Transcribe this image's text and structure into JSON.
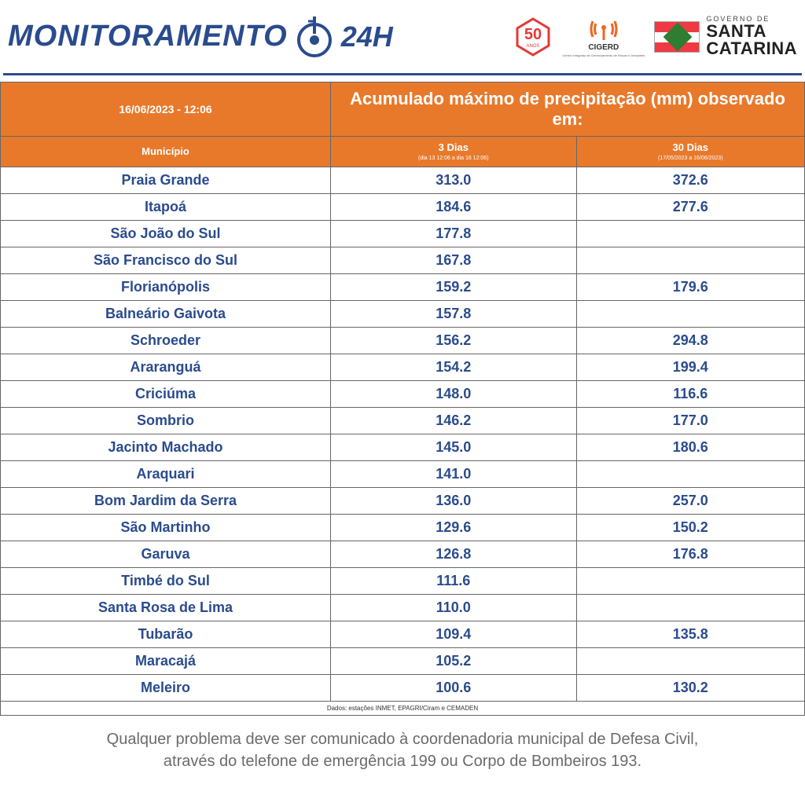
{
  "header": {
    "brand_text": "MONITORAMENTO",
    "brand_24h": "24H",
    "logo_50_top": "5",
    "logo_50_bottom": "ANOS",
    "cigerd_label": "CIGERD",
    "cigerd_sub": "Centro Integrado de Gerenciamento de Riscos e Desastres",
    "sc_gov": "GOVERNO DE",
    "sc_name1": "SANTA",
    "sc_name2": "CATARINA"
  },
  "table": {
    "timestamp": "16/06/2023 - 12:06",
    "title": "Acumulado máximo de precipitação (mm) observado em:",
    "col_municipio": "Município",
    "col_3dias": "3 Dias",
    "col_3dias_sub": "(dia 13 12:06 a dia 16 12:06)",
    "col_30dias": "30 Dias",
    "col_30dias_sub": "(17/05/2023 a 16/06/2023)",
    "columns_widths": [
      420,
      302,
      302
    ],
    "header_bg": "#e8792b",
    "header_fg": "#ffffff",
    "cell_fg": "#2a4b8d",
    "border_color": "#666666",
    "rows": [
      {
        "mun": "Praia Grande",
        "d3": "313.0",
        "d30": "372.6"
      },
      {
        "mun": "Itapoá",
        "d3": "184.6",
        "d30": "277.6"
      },
      {
        "mun": "São João do Sul",
        "d3": "177.8",
        "d30": ""
      },
      {
        "mun": "São Francisco do Sul",
        "d3": "167.8",
        "d30": ""
      },
      {
        "mun": "Florianópolis",
        "d3": "159.2",
        "d30": "179.6"
      },
      {
        "mun": "Balneário Gaivota",
        "d3": "157.8",
        "d30": ""
      },
      {
        "mun": "Schroeder",
        "d3": "156.2",
        "d30": "294.8"
      },
      {
        "mun": "Araranguá",
        "d3": "154.2",
        "d30": "199.4"
      },
      {
        "mun": "Criciúma",
        "d3": "148.0",
        "d30": "116.6"
      },
      {
        "mun": "Sombrio",
        "d3": "146.2",
        "d30": "177.0"
      },
      {
        "mun": "Jacinto Machado",
        "d3": "145.0",
        "d30": "180.6"
      },
      {
        "mun": "Araquari",
        "d3": "141.0",
        "d30": ""
      },
      {
        "mun": "Bom Jardim da Serra",
        "d3": "136.0",
        "d30": "257.0"
      },
      {
        "mun": "São Martinho",
        "d3": "129.6",
        "d30": "150.2"
      },
      {
        "mun": "Garuva",
        "d3": "126.8",
        "d30": "176.8"
      },
      {
        "mun": "Timbé do Sul",
        "d3": "111.6",
        "d30": ""
      },
      {
        "mun": "Santa Rosa de Lima",
        "d3": "110.0",
        "d30": ""
      },
      {
        "mun": "Tubarão",
        "d3": "109.4",
        "d30": "135.8"
      },
      {
        "mun": "Maracajá",
        "d3": "105.2",
        "d30": ""
      },
      {
        "mun": "Meleiro",
        "d3": "100.6",
        "d30": "130.2"
      }
    ],
    "source": "Dados: estações INMET, EPAGRI/Ciram e CEMADEN"
  },
  "footer": {
    "line1": "Qualquer problema deve ser comunicado à coordenadoria municipal de Defesa Civil,",
    "line2": "através do telefone de emergência 199 ou Corpo de Bombeiros 193."
  },
  "colors": {
    "brand_blue": "#2a4b8d",
    "orange": "#e8792b",
    "red_50": "#e53935",
    "cigerd_orange": "#f26522",
    "flag_red": "#ee3a43",
    "flag_green": "#2e7d32"
  }
}
